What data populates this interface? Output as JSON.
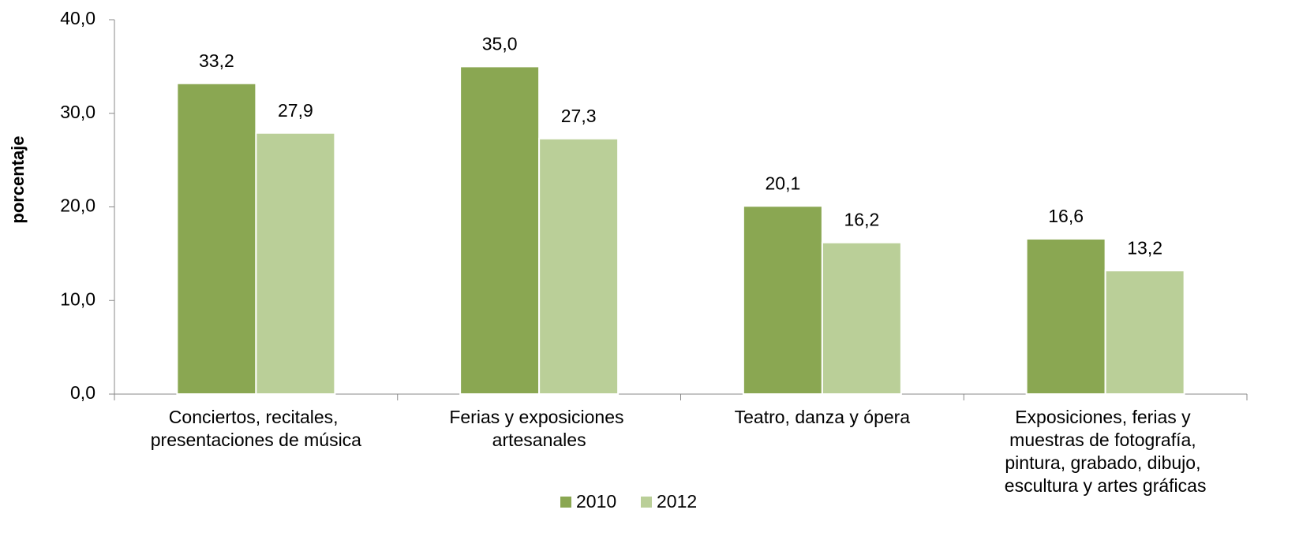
{
  "chart_data": {
    "type": "bar",
    "y_label": "porcentaje",
    "categories": [
      "Conciertos, recitales, presentaciones de música",
      "Ferias y exposiciones artesanales",
      "Teatro, danza y ópera",
      "Exposiciones, ferias y muestras de fotografía, pintura, grabado, dibujo, escultura y artes gráficas"
    ],
    "series": [
      {
        "name": "2010",
        "color": "#8aa752",
        "values": [
          33.2,
          35.0,
          20.1,
          16.6
        ],
        "value_labels": [
          "33,2",
          "35,0",
          "20,1",
          "16,6"
        ]
      },
      {
        "name": "2012",
        "color": "#bacf98",
        "values": [
          27.9,
          27.3,
          16.2,
          13.2
        ],
        "value_labels": [
          "27,9",
          "27,3",
          "16,2",
          "13,2"
        ]
      }
    ],
    "ylim": [
      0,
      40
    ],
    "yticks": [
      {
        "value": 0,
        "label": "0,0"
      },
      {
        "value": 10,
        "label": "10,0"
      },
      {
        "value": 20,
        "label": "20,0"
      },
      {
        "value": 30,
        "label": "30,0"
      },
      {
        "value": 40,
        "label": "40,0"
      }
    ],
    "grid": false,
    "legend": "bottom"
  }
}
